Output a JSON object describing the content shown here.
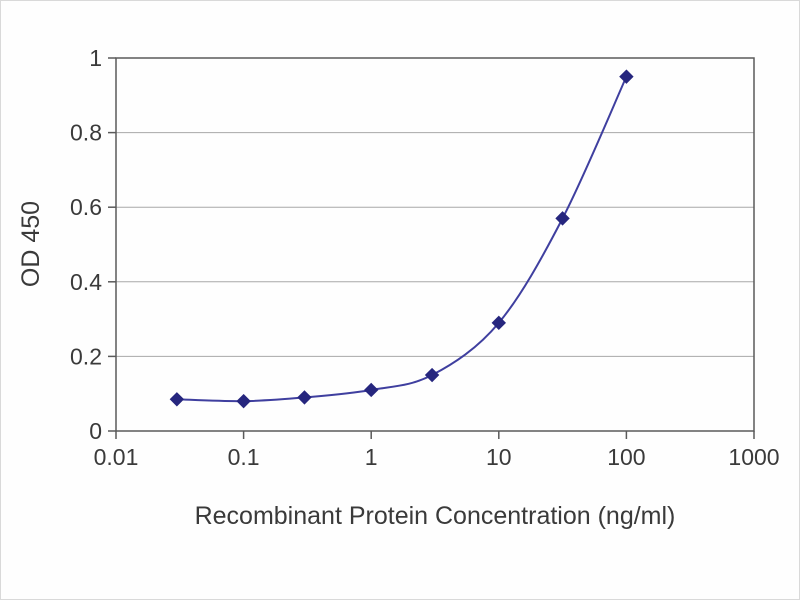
{
  "chart_data": {
    "type": "line",
    "title": "",
    "xlabel": "Recombinant Protein Concentration (ng/ml)",
    "ylabel": "OD 450",
    "x_scale": "log",
    "xlim": [
      0.01,
      1000
    ],
    "ylim": [
      0,
      1
    ],
    "xticks": [
      0.01,
      0.1,
      1,
      10,
      100,
      1000
    ],
    "xtick_labels": [
      "0.01",
      "0.1",
      "1",
      "10",
      "100",
      "1000"
    ],
    "yticks": [
      0,
      0.2,
      0.4,
      0.6,
      0.8,
      1
    ],
    "ytick_labels": [
      "0",
      "0.2",
      "0.4",
      "0.6",
      "0.8",
      "1"
    ],
    "grid": "horizontal",
    "legend": "none",
    "series": [
      {
        "name": "OD 450",
        "marker": "diamond",
        "x": [
          0.03,
          0.1,
          0.3,
          1,
          3,
          10,
          31.6,
          100
        ],
        "y": [
          0.085,
          0.08,
          0.09,
          0.11,
          0.15,
          0.29,
          0.57,
          0.95
        ]
      }
    ],
    "colors": {
      "line": "#3f3f9f",
      "marker": "#26267e",
      "grid": "#a8a8a8",
      "axis": "#5a5a5a",
      "text": "#3a3a3a",
      "background": "#ffffff"
    }
  }
}
